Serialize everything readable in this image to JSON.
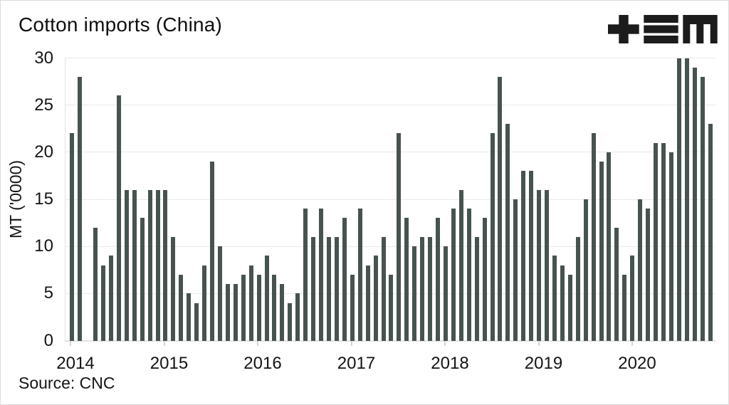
{
  "header": {
    "title": "Cotton imports (China)",
    "logo_name": "tem-logo"
  },
  "footer": {
    "source": "Source: CNC"
  },
  "colors": {
    "bar": "#47534f",
    "grid": "#e9e9e9",
    "axis": "#e3e3e3",
    "text": "#141414",
    "logo": "#1c1c1c",
    "background": "#ffffff"
  },
  "chart_data": {
    "type": "bar",
    "title": "Cotton imports (China)",
    "xlabel": "",
    "ylabel": "MT ('0000)",
    "ylim": [
      0,
      30
    ],
    "yticks": [
      0,
      5,
      10,
      15,
      20,
      25,
      30
    ],
    "grid": "horizontal",
    "legend": "none",
    "x_unit": "month",
    "note": "Monthly values Jan 2014 - Nov 2020; null = no bar shown (Mar 2014, Dec 2020)",
    "categories": [
      "2014",
      "2015",
      "2016",
      "2017",
      "2018",
      "2019",
      "2020"
    ],
    "series": [
      {
        "year": "2014",
        "values": [
          22,
          28,
          null,
          12,
          8,
          9,
          26,
          16,
          16,
          13,
          16,
          16
        ]
      },
      {
        "year": "2015",
        "values": [
          16,
          11,
          7,
          5,
          4,
          8,
          19,
          10,
          6,
          6,
          7,
          8
        ]
      },
      {
        "year": "2016",
        "values": [
          7,
          9,
          7,
          6,
          4,
          5,
          14,
          11,
          14,
          11,
          11,
          13
        ]
      },
      {
        "year": "2017",
        "values": [
          7,
          14,
          8,
          9,
          11,
          7,
          22,
          13,
          10,
          11,
          11,
          13
        ]
      },
      {
        "year": "2018",
        "values": [
          10,
          14,
          16,
          14,
          11,
          13,
          22,
          28,
          23,
          15,
          18,
          18
        ]
      },
      {
        "year": "2019",
        "values": [
          16,
          16,
          9,
          8,
          7,
          11,
          15,
          22,
          19,
          20,
          12,
          7
        ]
      },
      {
        "year": "2020",
        "values": [
          9,
          15,
          14,
          21,
          21,
          20,
          30,
          30,
          29,
          28,
          23,
          null
        ]
      }
    ],
    "source": "CNC"
  }
}
